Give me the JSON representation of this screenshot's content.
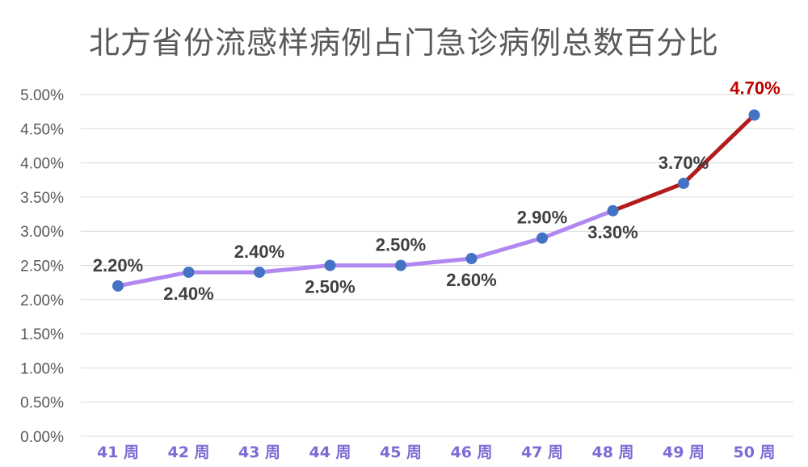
{
  "title": "北方省份流感样病例占门急诊病例总数百分比",
  "colors": {
    "line_main": "#B088F0",
    "line_highlight": "#B21C1C",
    "marker": "#4472C4",
    "grid": "#D9D9D9",
    "label": "#404040",
    "label_highlight": "#C00000",
    "xtick": "#7B6BD6"
  },
  "chart_data": {
    "type": "line",
    "title": "北方省份流感样病例占门急诊病例总数百分比",
    "categories": [
      "41 周",
      "42 周",
      "43 周",
      "44 周",
      "45 周",
      "46 周",
      "47 周",
      "48 周",
      "49 周",
      "50 周"
    ],
    "values": [
      2.2,
      2.4,
      2.4,
      2.5,
      2.5,
      2.6,
      2.9,
      3.3,
      3.7,
      4.7
    ],
    "labels": [
      "2.20%",
      "2.40%",
      "2.40%",
      "2.50%",
      "2.50%",
      "2.60%",
      "2.90%",
      "3.30%",
      "3.70%",
      "4.70%"
    ],
    "label_side": [
      "above",
      "below",
      "above",
      "below",
      "above",
      "below",
      "above",
      "below",
      "above",
      "above"
    ],
    "highlight_from_index": 7,
    "ylim": [
      0,
      5
    ],
    "yticks": [
      0,
      0.5,
      1,
      1.5,
      2,
      2.5,
      3,
      3.5,
      4,
      4.5,
      5
    ],
    "ytick_labels": [
      "0.00%",
      "0.50%",
      "1.00%",
      "1.50%",
      "2.00%",
      "2.50%",
      "3.00%",
      "3.50%",
      "4.00%",
      "4.50%",
      "5.00%"
    ],
    "grid": true,
    "legend": "none",
    "xlabel": "",
    "ylabel": ""
  }
}
